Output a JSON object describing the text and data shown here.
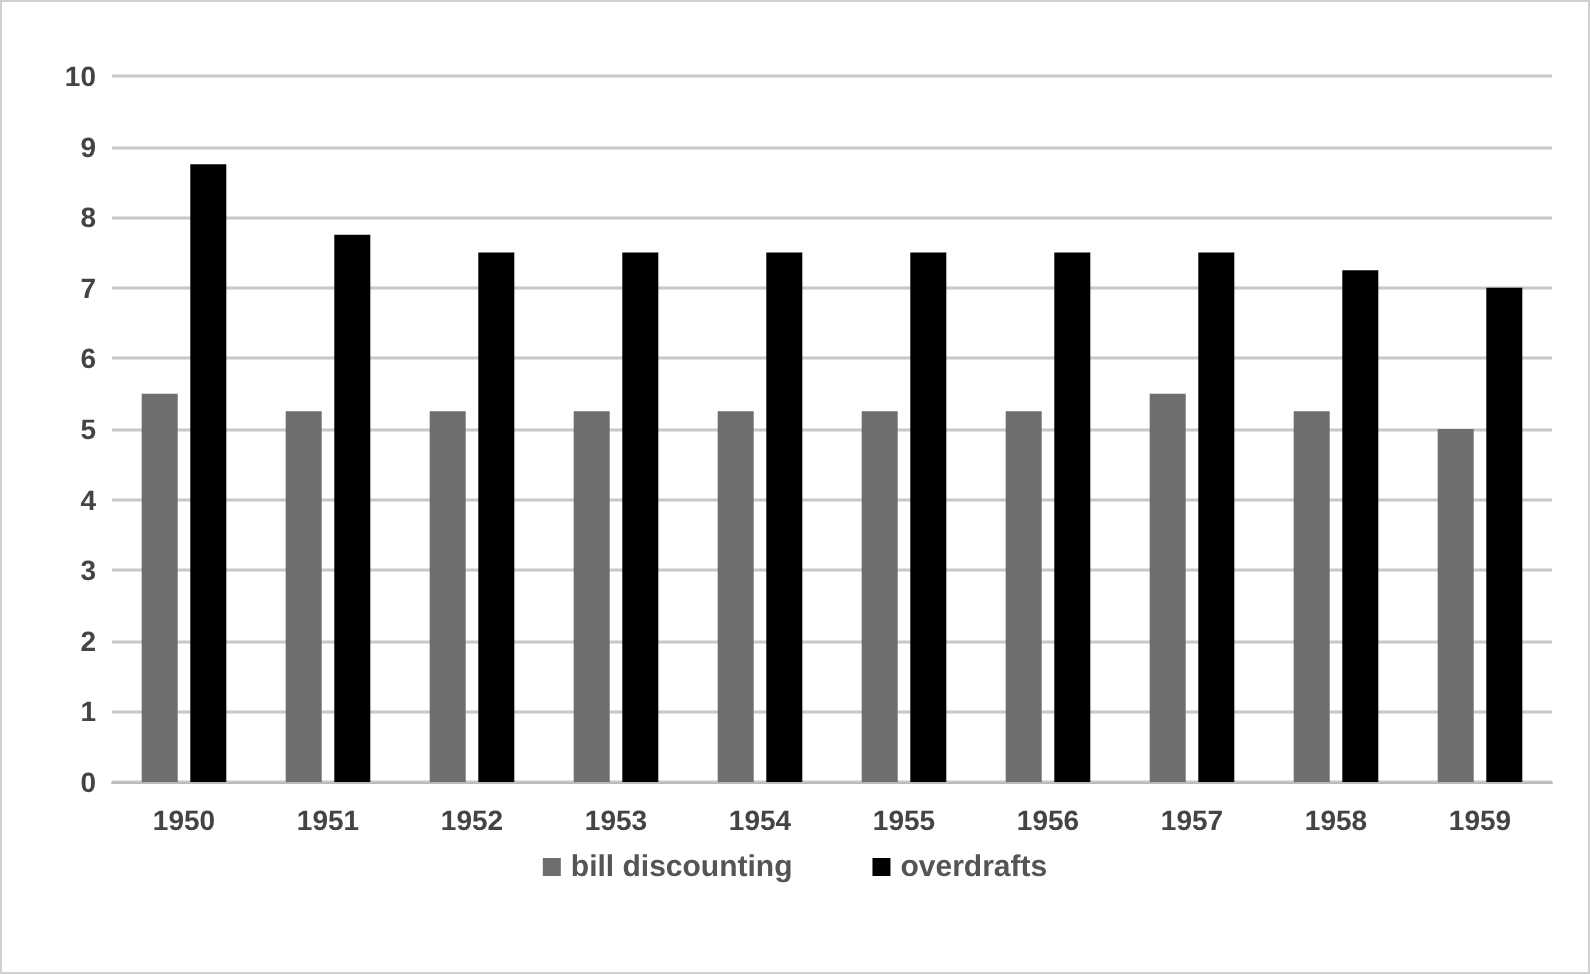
{
  "chart_data": {
    "type": "bar",
    "categories": [
      "1950",
      "1951",
      "1952",
      "1953",
      "1954",
      "1955",
      "1956",
      "1957",
      "1958",
      "1959"
    ],
    "series": [
      {
        "name": "bill discounting",
        "color": "#6e6e6e",
        "values": [
          5.5,
          5.25,
          5.25,
          5.25,
          5.25,
          5.25,
          5.25,
          5.5,
          5.25,
          5
        ]
      },
      {
        "name": "overdrafts",
        "color": "#000000",
        "values": [
          8.75,
          7.75,
          7.5,
          7.5,
          7.5,
          7.5,
          7.5,
          7.5,
          7.25,
          7
        ]
      }
    ],
    "ylim": [
      0,
      10
    ],
    "yticks": [
      0,
      1,
      2,
      3,
      4,
      5,
      6,
      7,
      8,
      9,
      10
    ],
    "grid": "y",
    "legend": "bottom"
  }
}
